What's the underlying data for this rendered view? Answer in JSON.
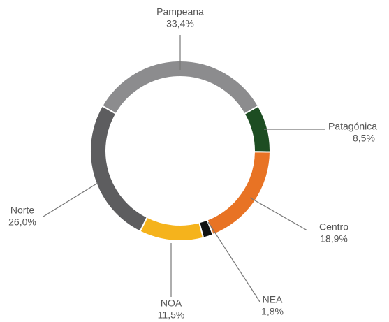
{
  "chart_data": {
    "type": "donut",
    "categories": [
      "Pampeana",
      "Patagónica",
      "Centro",
      "NEA",
      "NOA",
      "Norte"
    ],
    "values": [
      33.4,
      8.5,
      18.9,
      1.8,
      11.5,
      26.0
    ],
    "value_labels": [
      "33,4%",
      "8,5%",
      "18,9%",
      "1,8%",
      "11,5%",
      "26,0%"
    ],
    "colors": [
      "#8c8c8e",
      "#1d4d22",
      "#e87324",
      "#111111",
      "#f5b31c",
      "#5d5d5f"
    ]
  }
}
